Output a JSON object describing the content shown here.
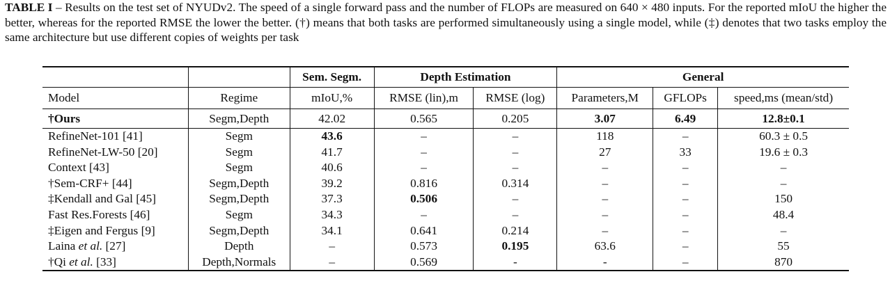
{
  "caption": {
    "title": "TABLE I",
    "text": " – Results on the test set of NYUDv2. The speed of a single forward pass and the number of FLOPs are measured on 640 × 480 inputs. For the reported mIoU the higher the better, whereas for the reported RMSE the lower the better. (†) means that both tasks are performed simultaneously using a single model, while (‡) denotes that two tasks employ the same architecture but use different copies of weights per task"
  },
  "groups": {
    "seg": "Sem. Segm.",
    "depth": "Depth Estimation",
    "general": "General"
  },
  "columns": [
    "Model",
    "Regime",
    "mIoU,%",
    "RMSE (lin),m",
    "RMSE (log)",
    "Parameters,M",
    "GFLOPs",
    "speed,ms (mean/std)"
  ],
  "ours": {
    "model": "†Ours",
    "regime": "Segm,Depth",
    "miou": "42.02",
    "rmse_lin": "0.565",
    "rmse_log": "0.205",
    "params": "3.07",
    "gflops": "6.49",
    "speed": "12.8±0.1"
  },
  "rows": [
    {
      "model": "RefineNet-101 [41]",
      "regime": "Segm",
      "miou": "43.6",
      "rmse_lin": "–",
      "rmse_log": "–",
      "params": "118",
      "gflops": "–",
      "speed": "60.3 ± 0.5"
    },
    {
      "model": "RefineNet-LW-50 [20]",
      "regime": "Segm",
      "miou": "41.7",
      "rmse_lin": "–",
      "rmse_log": "–",
      "params": "27",
      "gflops": "33",
      "speed": "19.6 ± 0.3"
    },
    {
      "model": "Context [43]",
      "regime": "Segm",
      "miou": "40.6",
      "rmse_lin": "–",
      "rmse_log": "–",
      "params": "–",
      "gflops": "–",
      "speed": "–"
    },
    {
      "model": "†Sem-CRF+ [44]",
      "regime": "Segm,Depth",
      "miou": "39.2",
      "rmse_lin": "0.816",
      "rmse_log": "0.314",
      "params": "–",
      "gflops": "–",
      "speed": "–"
    },
    {
      "model": "‡Kendall and Gal [45]",
      "regime": "Segm,Depth",
      "miou": "37.3",
      "rmse_lin": "0.506",
      "rmse_log": "–",
      "params": "–",
      "gflops": "–",
      "speed": "150"
    },
    {
      "model": "Fast Res.Forests [46]",
      "regime": "Segm",
      "miou": "34.3",
      "rmse_lin": "–",
      "rmse_log": "–",
      "params": "–",
      "gflops": "–",
      "speed": "48.4"
    },
    {
      "model": "‡Eigen and Fergus [9]",
      "regime": "Segm,Depth",
      "miou": "34.1",
      "rmse_lin": "0.641",
      "rmse_log": "0.214",
      "params": "–",
      "gflops": "–",
      "speed": "–"
    },
    {
      "model_pre": "Laina ",
      "model_em": "et al.",
      "model_post": " [27]",
      "regime": "Depth",
      "miou": "–",
      "rmse_lin": "0.573",
      "rmse_log": "0.195",
      "params": "63.6",
      "gflops": "–",
      "speed": "55"
    },
    {
      "model_pre": "†Qi ",
      "model_em": "et al.",
      "model_post": " [33]",
      "regime": "Depth,Normals",
      "miou": "–",
      "rmse_lin": "0.569",
      "rmse_log": "-",
      "params": "-",
      "gflops": "–",
      "speed": "870"
    }
  ]
}
